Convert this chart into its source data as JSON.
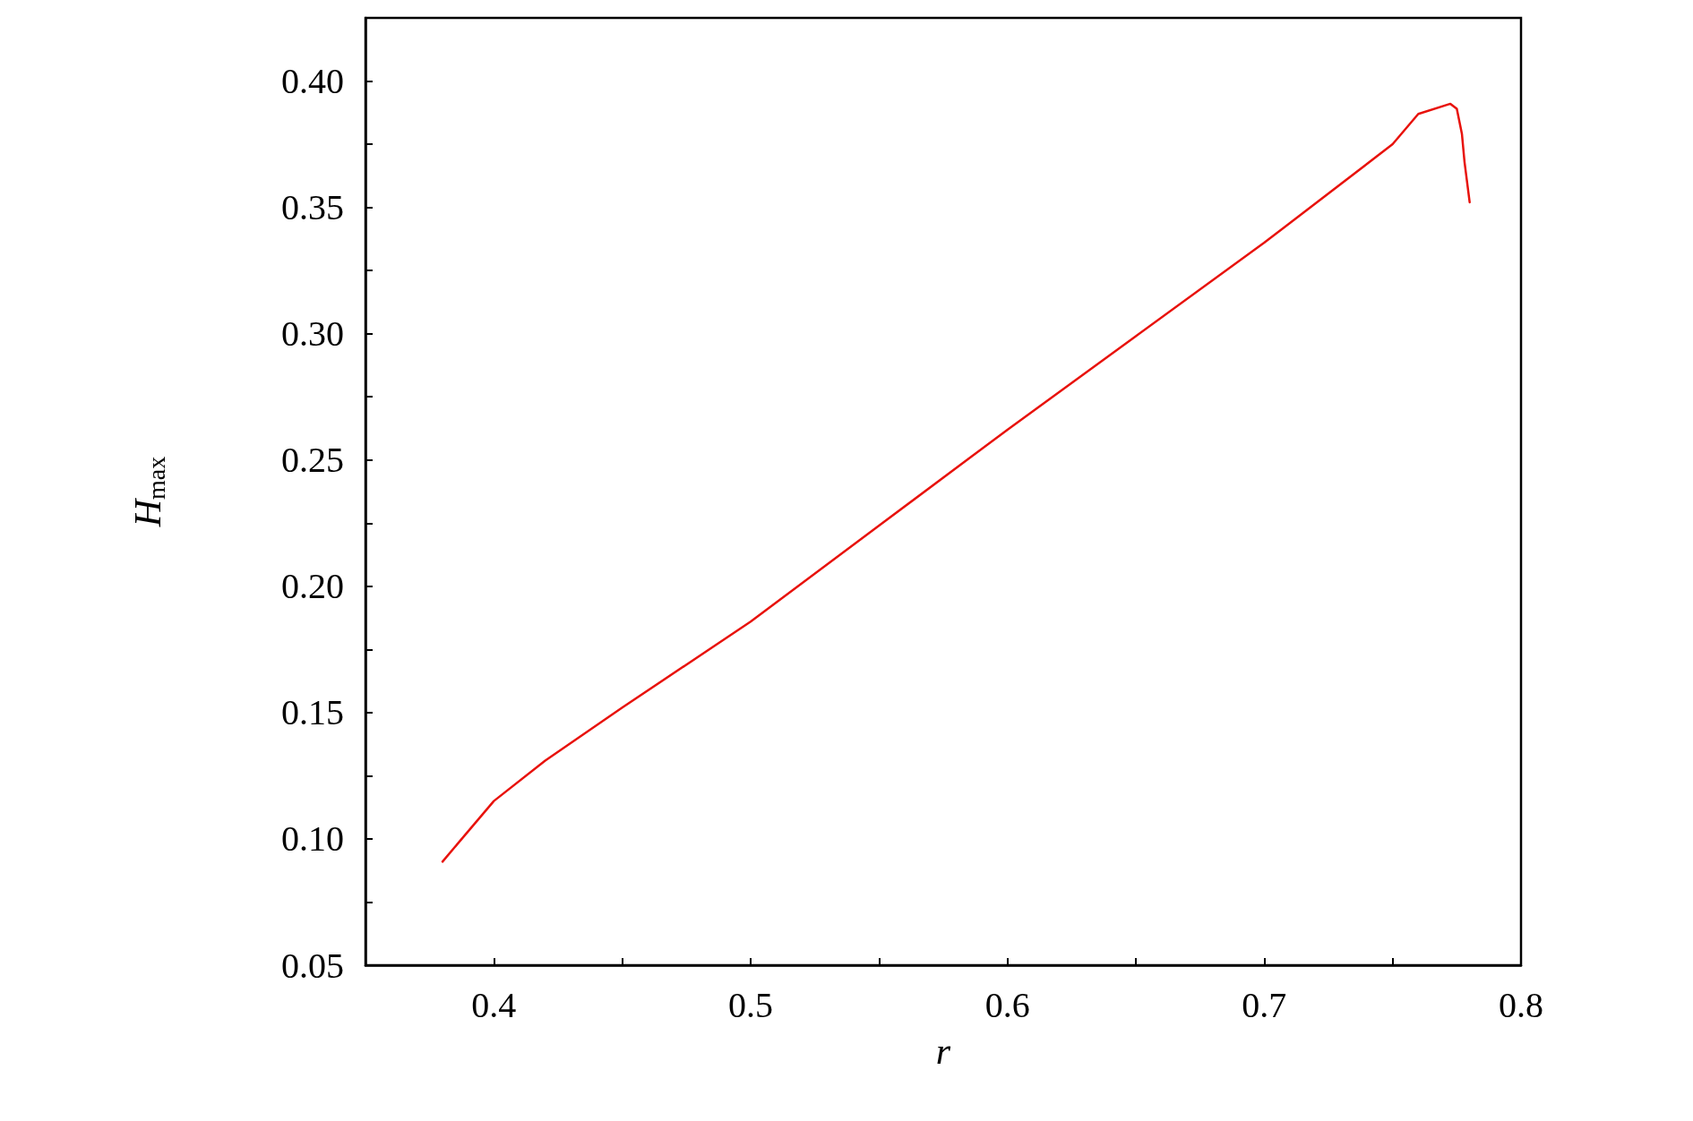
{
  "chart_data": {
    "type": "line",
    "xlabel": "r",
    "ylabel": "H$_{max}$",
    "x": [
      0.38,
      0.4,
      0.42,
      0.45,
      0.5,
      0.55,
      0.6,
      0.65,
      0.7,
      0.75,
      0.76,
      0.7725,
      0.775,
      0.777,
      0.778,
      0.78
    ],
    "series": [
      {
        "color": "#e8120c",
        "values": [
          0.091,
          0.115,
          0.131,
          0.152,
          0.186,
          0.224,
          0.262,
          0.299,
          0.336,
          0.375,
          0.387,
          0.391,
          0.389,
          0.379,
          0.368,
          0.352
        ]
      }
    ],
    "xlim": [
      0.35,
      0.8
    ],
    "xticks": [
      0.4,
      {
        "value": 0.45,
        "label": null
      },
      0.5,
      {
        "value": 0.55,
        "label": null
      },
      0.6,
      {
        "value": 0.65,
        "label": null
      },
      0.7,
      {
        "value": 0.75,
        "label": null
      },
      0.8
    ],
    "ylim": [
      0.05,
      0.425
    ],
    "yticks": [
      0.05,
      {
        "value": 0.075,
        "label": null
      },
      {
        "value": 0.1,
        "label": "0.10"
      },
      {
        "value": 0.125,
        "label": null
      },
      0.15,
      {
        "value": 0.175,
        "label": null
      },
      {
        "value": 0.2,
        "label": "0.20"
      },
      {
        "value": 0.225,
        "label": null
      },
      0.25,
      {
        "value": 0.275,
        "label": null
      },
      {
        "value": 0.3,
        "label": "0.30"
      },
      {
        "value": 0.325,
        "label": null
      },
      0.35,
      {
        "value": 0.375,
        "label": null
      },
      {
        "value": 0.4,
        "label": "0.40"
      }
    ],
    "grid": false,
    "marker": "none",
    "line_style": "solid"
  }
}
